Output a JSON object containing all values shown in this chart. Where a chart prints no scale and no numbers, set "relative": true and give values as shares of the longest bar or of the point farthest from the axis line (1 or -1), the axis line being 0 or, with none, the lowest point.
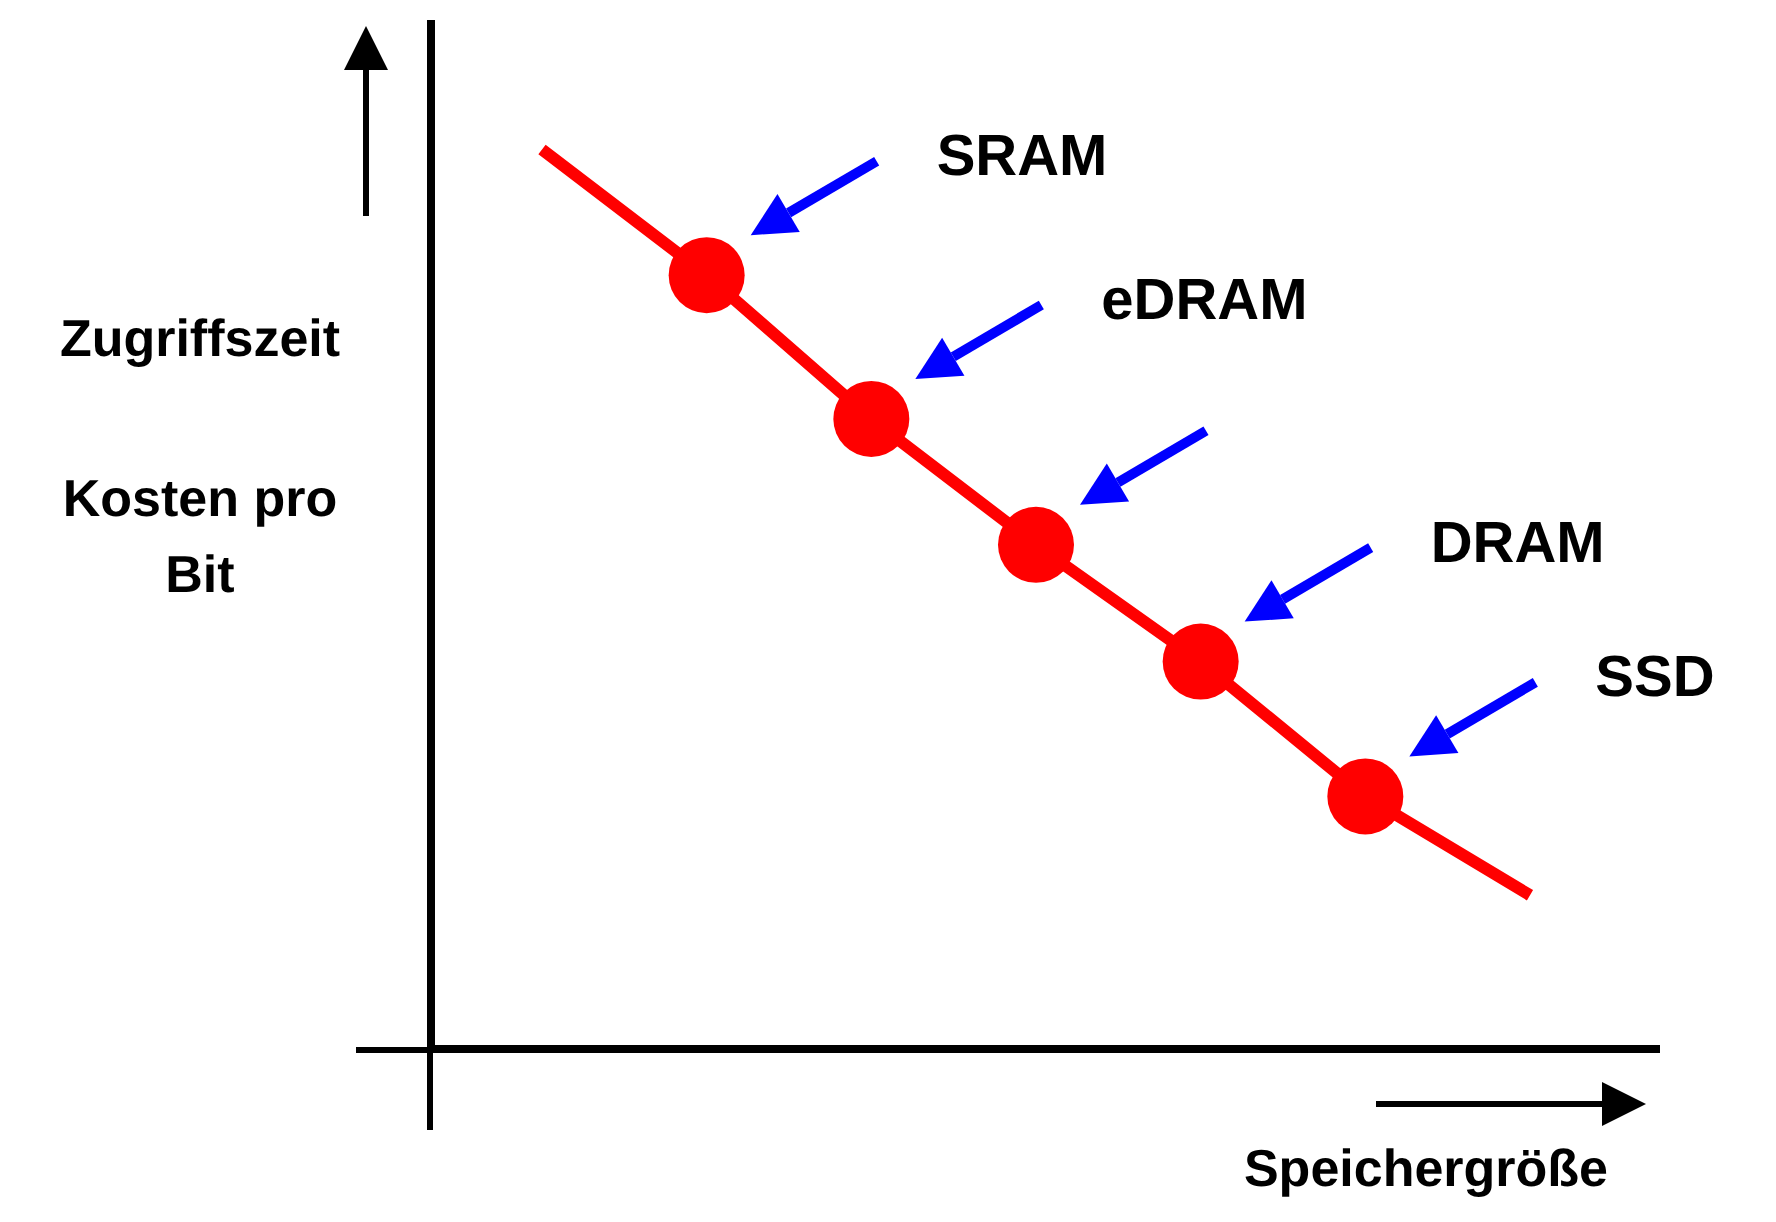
{
  "chart_data": {
    "type": "line",
    "relative": true,
    "xlabel": "Speichergröße",
    "annotations": [
      "Zugriffszeit",
      "Kosten pro Bit",
      "SRAM",
      "eDRAM",
      "DRAM",
      "SSD"
    ],
    "categories": [
      null,
      null,
      null,
      null,
      null,
      null,
      null
    ],
    "marker": "circle",
    "line_style": "solid",
    "series": [
      {
        "color": "#ff0000",
        "values": [
          1,
          0.86,
          0.7,
          0.56,
          0.43,
          0.28,
          0.17
        ]
      }
    ]
  }
}
